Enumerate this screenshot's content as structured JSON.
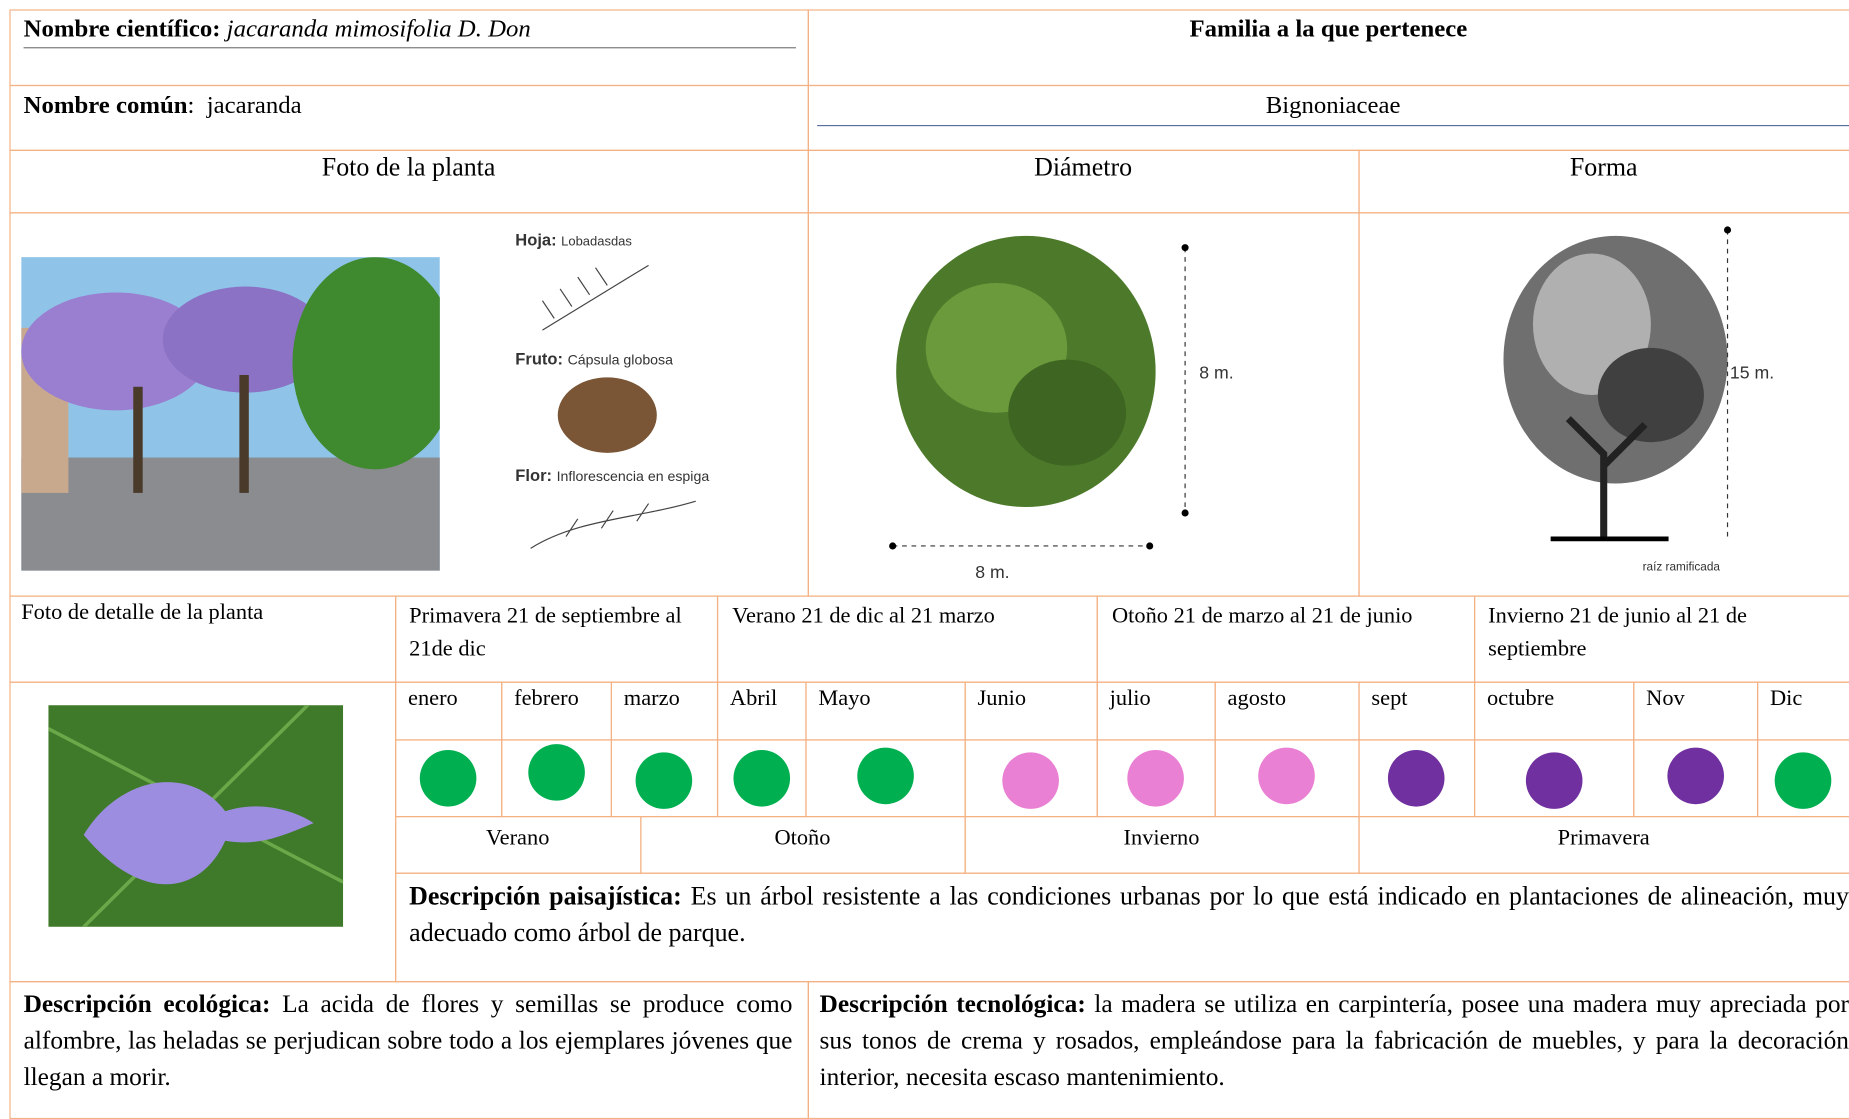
{
  "header": {
    "scientific_name_label": "Nombre científico:",
    "scientific_name": "jacaranda mimosifolia D. Don",
    "family_label": "Familia a la que pertenece",
    "common_name_label": "Nombre común",
    "common_name": ":  jacaranda",
    "family": "Bignoniaceae"
  },
  "sections": {
    "photo": "Foto de la planta",
    "diameter": "Diámetro",
    "shape": "Forma",
    "detail_photo": "Foto de detalle de la planta"
  },
  "image_text": {
    "leaf_label": "Hoja:",
    "leaf": "Lobadasdas",
    "fruit_label": "Fruto:",
    "fruit": "Cápsula globosa",
    "flower_label": "Flor:",
    "flower": "Inflorescencia en espiga",
    "diameter_height": "8 m.",
    "diameter_width": "8 m.",
    "height": "15 m.",
    "root": "raíz ramificada"
  },
  "seasons": [
    "Primavera 21 de septiembre al 21de dic",
    "Verano 21 de dic al 21 marzo",
    "Otoño 21 de marzo al 21 de junio",
    "Invierno 21 de junio al 21 de septiembre"
  ],
  "months": [
    {
      "name": "enero",
      "color": "#00b050"
    },
    {
      "name": "febrero",
      "color": "#00b050"
    },
    {
      "name": "marzo",
      "color": "#00b050"
    },
    {
      "name": "Abril",
      "color": "#00b050"
    },
    {
      "name": "Mayo",
      "color": "#00b050"
    },
    {
      "name": "Junio",
      "color": "#ea80d4"
    },
    {
      "name": "julio",
      "color": "#ea80d4"
    },
    {
      "name": "agosto",
      "color": "#ea80d4"
    },
    {
      "name": "sept",
      "color": "#7030a0"
    },
    {
      "name": "octubre",
      "color": "#7030a0"
    },
    {
      "name": "Nov",
      "color": "#7030a0"
    },
    {
      "name": "Dic",
      "color": "#00b050"
    }
  ],
  "season_bands": [
    "Verano",
    "Otoño",
    "Invierno",
    "Primavera"
  ],
  "descriptions": {
    "landscape_label": "Descripción paisajística:",
    "landscape": "Es un árbol resistente a las condiciones urbanas por lo que está indicado en plantaciones de alineación, muy adecuado como árbol de parque.",
    "ecological_label": "Descripción ecológica:",
    "ecological": "La acida de flores y semillas se produce como alfombre, las heladas se perjudican sobre todo a los ejemplares jóvenes que llegan a morir.",
    "technological_label": "Descripción tecnológica:",
    "technological": "la madera se utiliza en carpintería, posee una madera muy apreciada por sus tonos de crema y rosados, empleándose para la fabricación de muebles, y para la decoración interior, necesita escaso mantenimiento."
  }
}
